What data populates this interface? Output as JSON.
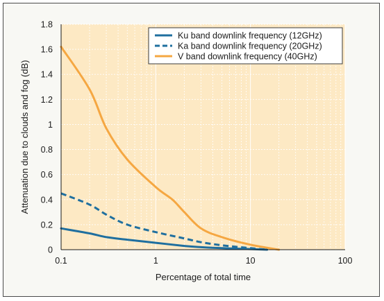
{
  "colors": {
    "frame_background": "#f8f8f4",
    "plot_background": "#fde9c4",
    "grid": "#ffffff",
    "ku": "#1f6f9f",
    "ka": "#1f6f9f",
    "v": "#f5a742"
  },
  "chart_data": {
    "type": "line",
    "title": "",
    "xlabel": "Percentage of total time",
    "ylabel": "Attenuation due to clouds and fog (dB)",
    "xscale": "log",
    "xlim": [
      0.1,
      100
    ],
    "ylim": [
      0,
      1.8
    ],
    "grid": true,
    "legend_position": "top-right",
    "x_ticks": [
      0.1,
      1,
      10,
      100
    ],
    "x_tick_labels": [
      "0.1",
      "1",
      "10",
      "100"
    ],
    "y_ticks": [
      0,
      0.2,
      0.4,
      0.6,
      0.8,
      1,
      1.2,
      1.4,
      1.6,
      1.8
    ],
    "y_tick_labels": [
      "0",
      "0.2",
      "0.4",
      "0.6",
      "0.8",
      "1",
      "1.2",
      "1.4",
      "1.6",
      "1.8"
    ],
    "series": [
      {
        "name": "Ku band downlink frequency (12GHz)",
        "style": "solid",
        "color": "#1f6f9f",
        "x": [
          0.1,
          0.2,
          0.3,
          0.5,
          1,
          2,
          3,
          5,
          10,
          15
        ],
        "y": [
          0.17,
          0.13,
          0.1,
          0.08,
          0.055,
          0.03,
          0.02,
          0.012,
          0.005,
          0.0
        ]
      },
      {
        "name": "Ka band downlink frequency (20GHz)",
        "style": "dashed",
        "color": "#1f6f9f",
        "x": [
          0.1,
          0.2,
          0.3,
          0.5,
          1,
          2,
          3,
          5,
          10,
          15
        ],
        "y": [
          0.45,
          0.36,
          0.28,
          0.2,
          0.14,
          0.09,
          0.06,
          0.035,
          0.012,
          0.0
        ]
      },
      {
        "name": "V band downlink frequency (40GHz)",
        "style": "solid",
        "color": "#f5a742",
        "x": [
          0.1,
          0.2,
          0.3,
          0.5,
          1,
          1.5,
          2,
          3,
          5,
          10,
          20
        ],
        "y": [
          1.62,
          1.28,
          0.97,
          0.72,
          0.5,
          0.4,
          0.3,
          0.17,
          0.1,
          0.04,
          0.0
        ]
      }
    ]
  }
}
